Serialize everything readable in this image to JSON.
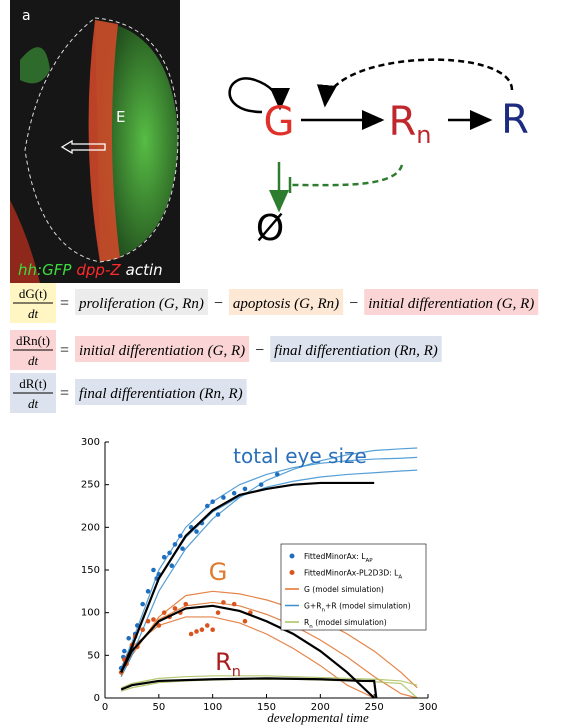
{
  "panel": {
    "label": "a",
    "region": "E",
    "stains": [
      {
        "text": "hh:GFP",
        "color": "#3fdc3f"
      },
      {
        "text": "dpp-Z",
        "color": "#ff2a2a"
      },
      {
        "text": "actin",
        "color": "#ffffff"
      }
    ]
  },
  "diagram": {
    "nodes": [
      {
        "label": "G",
        "color": "#e0302a"
      },
      {
        "label": "R",
        "sub": "n",
        "color": "#c0272d"
      },
      {
        "label": "R",
        "color": "#1c2a80"
      },
      {
        "label": "Ø",
        "color": "#000000"
      }
    ]
  },
  "equations": [
    {
      "numerator": "dG(t)",
      "denominator": "dt",
      "bg": "#fff6c4",
      "items": [
        {
          "text": "="
        },
        {
          "text": "proliferation (G, Rn)",
          "bg": "#ececec"
        },
        {
          "text": "−"
        },
        {
          "text": "apoptosis (G, Rn)",
          "bg": "#fde8d6"
        },
        {
          "text": "−"
        },
        {
          "text": "initial differentiation (G, R)",
          "bg": "#fbd5d5"
        }
      ]
    },
    {
      "numerator": "dRn(t)",
      "denominator": "dt",
      "bg": "#fbd5d5",
      "items": [
        {
          "text": "="
        },
        {
          "text": "initial differentiation (G, R)",
          "bg": "#fbd5d5"
        },
        {
          "text": "−"
        },
        {
          "text": "final differentiation (Rn, R)",
          "bg": "#dde3ee"
        }
      ]
    },
    {
      "numerator": "dR(t)",
      "denominator": "dt",
      "bg": "#dde3ee",
      "items": [
        {
          "text": "="
        },
        {
          "text": "final differentiation (Rn, R)",
          "bg": "#dde3ee"
        }
      ]
    }
  ],
  "chart_data": {
    "type": "scatter",
    "xlabel": "developmental time",
    "xlim": [
      0,
      300
    ],
    "xticks": [
      0,
      50,
      100,
      150,
      200,
      250,
      300
    ],
    "ylim": [
      0,
      300
    ],
    "yticks": [
      0,
      50,
      100,
      150,
      200,
      250,
      300
    ],
    "annotations": [
      {
        "parts": [
          {
            "t": "total eye size"
          }
        ],
        "color": "#2a6fb8"
      },
      {
        "parts": [
          {
            "t": "G"
          }
        ],
        "color": "#e07a30"
      },
      {
        "parts": [
          {
            "t": "R"
          },
          {
            "sub": "n"
          }
        ],
        "color": "#a81e1e"
      }
    ],
    "series": [
      {
        "kind": "lines",
        "name": [
          {
            "t": "G (model simulation)"
          }
        ],
        "color": "#e0702a",
        "x": [
          15,
          25,
          50,
          75,
          100,
          125,
          150,
          175,
          200,
          225,
          250,
          275,
          290
        ],
        "curves": [
          [
            25,
            50,
            95,
            120,
            125,
            122,
            115,
            105,
            92,
            75,
            55,
            30,
            12
          ],
          [
            35,
            60,
            85,
            95,
            95,
            88,
            75,
            58,
            38,
            15,
            0,
            null,
            null
          ],
          [
            30,
            55,
            92,
            108,
            112,
            108,
            98,
            85,
            68,
            48,
            25,
            5,
            0
          ]
        ]
      },
      {
        "kind": "lines",
        "name": [
          {
            "t": "G+R"
          },
          {
            "sub": "n"
          },
          {
            "t": "+R (model simulation)"
          }
        ],
        "color": "#3a8fd0",
        "x": [
          15,
          25,
          50,
          75,
          100,
          125,
          150,
          175,
          200,
          225,
          250,
          275,
          290
        ],
        "curves": [
          [
            25,
            50,
            125,
            175,
            210,
            235,
            255,
            268,
            278,
            285,
            290,
            292,
            293
          ],
          [
            35,
            65,
            150,
            200,
            230,
            250,
            262,
            270,
            275,
            278,
            280,
            281,
            282
          ],
          [
            30,
            58,
            140,
            188,
            218,
            236,
            247,
            254,
            259,
            262,
            264,
            266,
            267
          ]
        ]
      },
      {
        "kind": "lines",
        "name": [
          {
            "t": "R"
          },
          {
            "sub": "n"
          },
          {
            "t": " (model simulation)"
          }
        ],
        "color": "#a8c05a",
        "x": [
          15,
          25,
          50,
          75,
          100,
          125,
          150,
          175,
          200,
          225,
          250,
          275,
          290
        ],
        "curves": [
          [
            8,
            12,
            18,
            20,
            21,
            22,
            22,
            22,
            21,
            20,
            19,
            17,
            0
          ],
          [
            12,
            17,
            23,
            25,
            26,
            26,
            26,
            25,
            24,
            23,
            22,
            20,
            15
          ]
        ]
      },
      {
        "kind": "points",
        "name": [
          {
            "t": "FittedMinorAx: L"
          },
          {
            "sub": "AP"
          }
        ],
        "color": "#1f6fc0",
        "x": [
          15,
          17,
          18,
          20,
          22,
          25,
          28,
          30,
          35,
          40,
          45,
          48,
          50,
          55,
          60,
          62,
          65,
          70,
          72,
          80,
          85,
          90,
          95,
          100,
          105,
          110,
          120,
          130,
          145,
          160
        ],
        "values": [
          35,
          48,
          55,
          45,
          70,
          60,
          75,
          85,
          110,
          125,
          150,
          140,
          145,
          165,
          170,
          155,
          180,
          190,
          175,
          200,
          195,
          205,
          225,
          230,
          215,
          235,
          240,
          245,
          250,
          262
        ]
      },
      {
        "kind": "points",
        "name": [
          {
            "t": "FittedMinorAx-PL2D3D: L"
          },
          {
            "sub": "A"
          }
        ],
        "color": "#d9541e",
        "x": [
          15,
          18,
          20,
          22,
          25,
          28,
          30,
          35,
          40,
          45,
          50,
          55,
          60,
          65,
          70,
          75,
          80,
          85,
          90,
          95,
          100,
          105,
          110,
          120,
          130,
          135
        ],
        "values": [
          30,
          45,
          40,
          50,
          62,
          72,
          60,
          80,
          90,
          92,
          85,
          100,
          95,
          105,
          100,
          110,
          75,
          78,
          80,
          85,
          80,
          100,
          112,
          110,
          90,
          100
        ]
      }
    ],
    "fits": [
      {
        "color": "#000000",
        "x": [
          15,
          25,
          50,
          75,
          100,
          125,
          150,
          175,
          200,
          250
        ],
        "values": [
          30,
          60,
          140,
          190,
          220,
          238,
          245,
          250,
          252,
          252
        ]
      },
      {
        "color": "#000000",
        "x": [
          15,
          25,
          50,
          75,
          100,
          125,
          150,
          175,
          200,
          225,
          240,
          250
        ],
        "values": [
          30,
          55,
          90,
          105,
          108,
          102,
          90,
          75,
          55,
          30,
          12,
          0
        ]
      },
      {
        "color": "#000000",
        "x": [
          15,
          25,
          50,
          100,
          150,
          200,
          240,
          250,
          252
        ],
        "values": [
          10,
          15,
          20,
          22,
          23,
          22,
          20,
          20,
          0
        ]
      }
    ]
  }
}
